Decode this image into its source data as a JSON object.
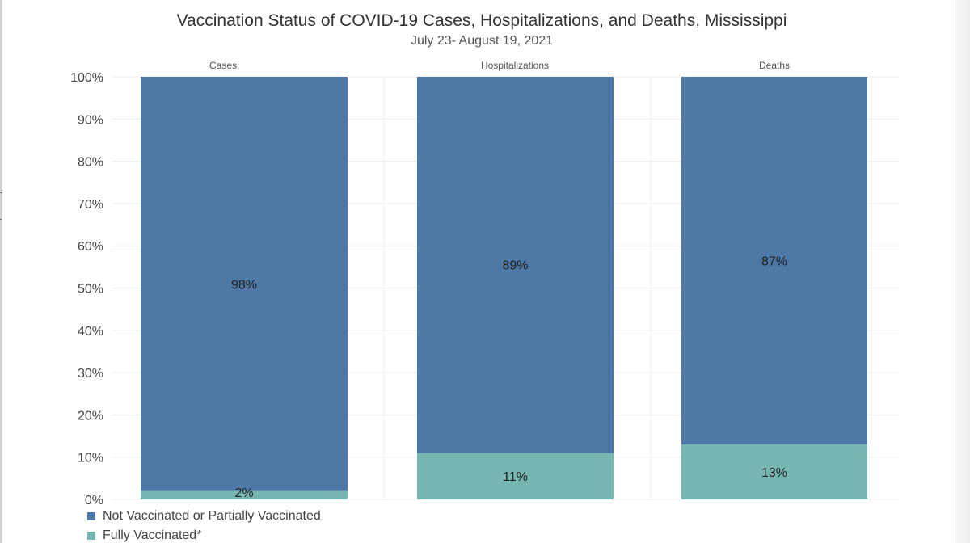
{
  "header": {
    "title": "Vaccination Status of COVID-19 Cases, Hospitalizations, and Deaths, Mississippi",
    "subtitle": "July 23- August 19, 2021"
  },
  "legend": {
    "items": [
      {
        "label": "Not Vaccinated or Partially Vaccinated",
        "color": "#4E79A7"
      },
      {
        "label": "Fully Vaccinated*",
        "color": "#76B7B2"
      }
    ]
  },
  "chart_data": {
    "type": "bar",
    "stacked": true,
    "title": "Vaccination Status of COVID-19 Cases, Hospitalizations, and Deaths, Mississippi",
    "subtitle": "July 23- August 19, 2021",
    "categories": [
      "Cases",
      "Hospitalizations",
      "Deaths"
    ],
    "series": [
      {
        "name": "Fully Vaccinated*",
        "values": [
          2,
          11,
          13
        ],
        "labels": [
          "2%",
          "11%",
          "13%"
        ],
        "color": "#76B7B2"
      },
      {
        "name": "Not Vaccinated or Partially Vaccinated",
        "values": [
          98,
          89,
          87
        ],
        "labels": [
          "98%",
          "89%",
          "87%"
        ],
        "color": "#4E79A7"
      }
    ],
    "ylim": [
      0,
      100
    ],
    "yticks": [
      0,
      10,
      20,
      30,
      40,
      50,
      60,
      70,
      80,
      90,
      100
    ],
    "ytick_labels": [
      "0%",
      "10%",
      "20%",
      "30%",
      "40%",
      "50%",
      "60%",
      "70%",
      "80%",
      "90%",
      "100%"
    ],
    "xlabel": "",
    "ylabel": "",
    "grid": true,
    "legend_position": "bottom-left"
  }
}
